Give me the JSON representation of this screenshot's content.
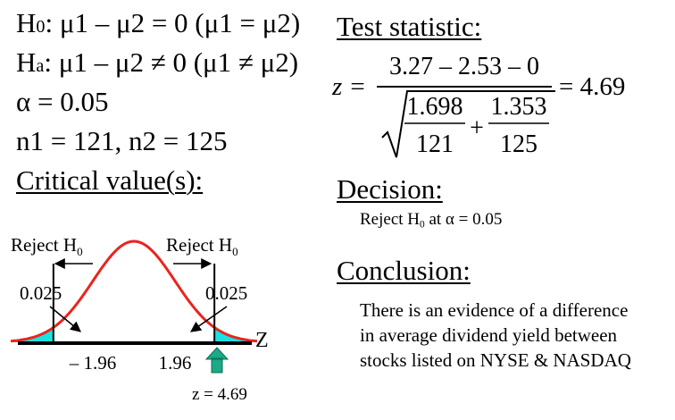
{
  "hypotheses": {
    "h0_label": "H0",
    "h0_expr": ": μ1 – μ2 = 0 (μ1 = μ2)",
    "ha_label": "Ha",
    "ha_expr": ": μ1 – μ2 ≠ 0 (μ1 ≠ μ2)",
    "alpha_line": "α = 0.05",
    "n_line": "n1 = 121, n2 = 125"
  },
  "critical_heading": "Critical value(s):",
  "test_heading": "Test statistic:",
  "formula": {
    "lhs": "z =",
    "numerator": "3.27 – 2.53 – 0",
    "frac1_num": "1.698",
    "frac1_den": "121",
    "plus": "+",
    "frac2_num": "1.353",
    "frac2_den": "125",
    "result": "= 4.69"
  },
  "decision_heading": "Decision:",
  "decision_text": "Reject H0 at α = 0.05",
  "conclusion_heading": "Conclusion:",
  "conclusion_lines": [
    "There is an evidence of a difference",
    "in average dividend yield between",
    "stocks listed on NYSE & NASDAQ"
  ],
  "chart_data": {
    "type": "area",
    "distribution": "standard normal",
    "x_range": [
      -3,
      3
    ],
    "axis_label": "Z",
    "critical_values": [
      -1.96,
      1.96
    ],
    "tick_labels": [
      "– 1.96",
      "1.96"
    ],
    "tail_area_labels": [
      "0.025",
      "0.025"
    ],
    "reject_labels": [
      "Reject H0",
      "Reject H0"
    ],
    "test_statistic_label": "z = 4.69",
    "colors": {
      "curve": "#e8251f",
      "tail_fill": "#19e2e2",
      "arrow": "#1aaa86"
    }
  }
}
